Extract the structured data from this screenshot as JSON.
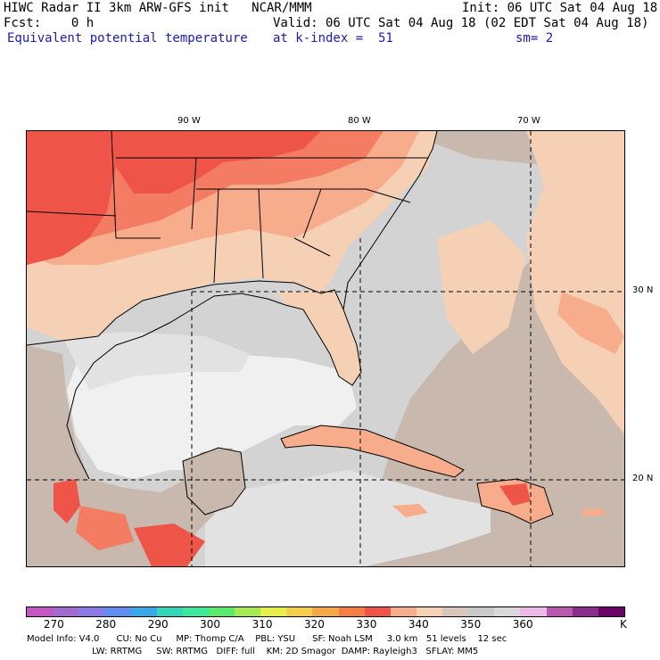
{
  "header": {
    "line1_left": "HIWC Radar II 3km ARW-GFS init   NCAR/MMM",
    "line1_right": "Init: 06 UTC Sat 04 Aug 18",
    "line2_left": "Fcst:    0 h",
    "line2_right": "Valid: 06 UTC Sat 04 Aug 18 (02 EDT Sat 04 Aug 18)",
    "line3_left": "Equivalent potential temperature",
    "line3_mid": "at k-index =  51",
    "line3_right": "sm= 2"
  },
  "map": {
    "lon_labels": [
      "90 W",
      "80 W",
      "70 W"
    ],
    "lat_labels": [
      "30 N",
      "20 N"
    ],
    "colors": {
      "gulf_light": "#f0f0f0",
      "light_gray": "#e2e2e2",
      "gray": "#d3d3d3",
      "tan_gray": "#c8b8ad",
      "peach": "#f5d0b5",
      "salmon": "#f7ad8c",
      "orange_red": "#f47c62",
      "red": "#ee5548",
      "land_line": "#000000",
      "grid_line": "#000000"
    }
  },
  "colorbar": {
    "colors": [
      "#c455c4",
      "#a06ad0",
      "#8a7ae6",
      "#5f8ef0",
      "#3aa8e8",
      "#35d6b8",
      "#3ee89a",
      "#5cea6c",
      "#a4ea52",
      "#e6ee48",
      "#f4cd4a",
      "#f6a74a",
      "#f47e45",
      "#ee5548",
      "#f7ad8c",
      "#f5d0b5",
      "#d8c6bb",
      "#c9c9c9",
      "#d9d9d9",
      "#eeb9e6",
      "#b858b0",
      "#8a2d8a",
      "#6a006a"
    ],
    "ticks": [
      "270",
      "280",
      "290",
      "300",
      "310",
      "320",
      "330",
      "340",
      "350",
      "360",
      "K"
    ]
  },
  "footer": {
    "line1": "Model Info: V4.0      CU: No Cu     MP: Thomp C/A    PBL: YSU      SF: Noah LSM     3.0 km   51 levels    12 sec",
    "line2": "                       LW: RRTMG     SW: RRTMG   DIFF: full    KM: 2D Smagor  DAMP: Rayleigh3   SFLAY: MM5"
  }
}
